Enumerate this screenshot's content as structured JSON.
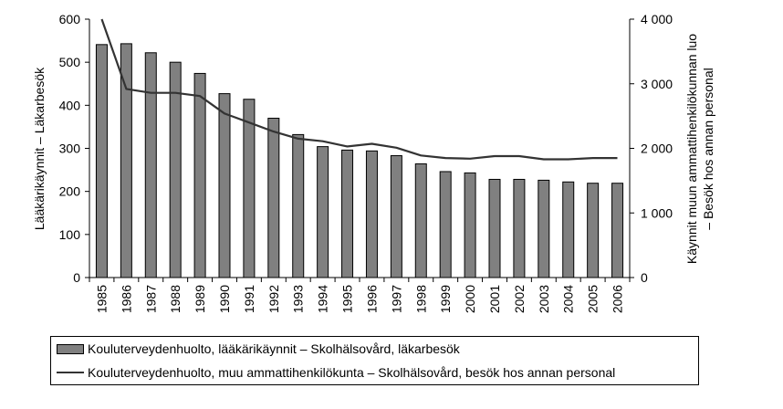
{
  "chart_data": {
    "type": "bar",
    "categories": [
      "1985",
      "1986",
      "1987",
      "1988",
      "1989",
      "1990",
      "1991",
      "1992",
      "1993",
      "1994",
      "1995",
      "1996",
      "1997",
      "1998",
      "1999",
      "2000",
      "2001",
      "2002",
      "2003",
      "2004",
      "2005",
      "2006"
    ],
    "series": [
      {
        "name": "Kouluterveydenhuolto, lääkärikäynnit – Skolhälsovård, läkarbesök",
        "kind": "bar",
        "axis": "left",
        "color": "#808080",
        "values": [
          541,
          543,
          522,
          500,
          474,
          427,
          414,
          370,
          332,
          304,
          296,
          294,
          283,
          264,
          246,
          243,
          228,
          228,
          226,
          222,
          219,
          219
        ]
      },
      {
        "name": "Kouluterveydenhuolto, muu ammattihenkilökunta – Skolhälsovård, besök hos annan personal",
        "kind": "line",
        "axis": "right",
        "color": "#333333",
        "values": [
          4000,
          2920,
          2860,
          2860,
          2810,
          2540,
          2400,
          2260,
          2150,
          2110,
          2030,
          2070,
          2010,
          1890,
          1850,
          1840,
          1880,
          1880,
          1830,
          1830,
          1850,
          1850
        ]
      }
    ],
    "ylabel": "Lääkärikäynnit – Läkarbesök",
    "y2label_lines": [
      "Käynnit muun ammattihenkilökunnan luo",
      "– Besök hos annan personal"
    ],
    "ylim": [
      0,
      600
    ],
    "y2lim": [
      0,
      4000
    ],
    "yticks": [
      "0",
      "100",
      "200",
      "300",
      "400",
      "500",
      "600"
    ],
    "y2ticks": [
      "0",
      "1 000",
      "2 000",
      "3 000",
      "4 000"
    ],
    "grid": false,
    "legend_position": "bottom"
  }
}
